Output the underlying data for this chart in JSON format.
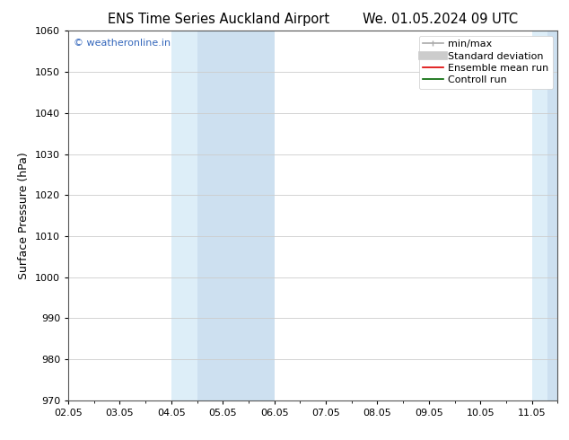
{
  "title": "ENS Time Series Auckland Airport",
  "title2": "We. 01.05.2024 09 UTC",
  "ylabel": "Surface Pressure (hPa)",
  "ylim": [
    970,
    1060
  ],
  "yticks": [
    970,
    980,
    990,
    1000,
    1010,
    1020,
    1030,
    1040,
    1050,
    1060
  ],
  "xlim": [
    0,
    9.5
  ],
  "xtick_labels": [
    "02.05",
    "03.05",
    "04.05",
    "05.05",
    "06.05",
    "07.05",
    "08.05",
    "09.05",
    "10.05",
    "11.05"
  ],
  "xtick_positions": [
    0,
    1,
    2,
    3,
    4,
    5,
    6,
    7,
    8,
    9
  ],
  "watermark": "© weatheronline.in",
  "watermark_color": "#3366bb",
  "shaded_bands": [
    {
      "x_start": 2.0,
      "x_end": 2.5,
      "color": "#ddeef8"
    },
    {
      "x_start": 2.5,
      "x_end": 4.0,
      "color": "#cde0f0"
    },
    {
      "x_start": 9.0,
      "x_end": 9.3,
      "color": "#ddeef8"
    },
    {
      "x_start": 9.3,
      "x_end": 9.5,
      "color": "#cde0f0"
    }
  ],
  "legend_items": [
    {
      "label": "min/max",
      "color": "#aaaaaa",
      "lw": 1.2
    },
    {
      "label": "Standard deviation",
      "color": "#cccccc",
      "lw": 7
    },
    {
      "label": "Ensemble mean run",
      "color": "#dd0000",
      "lw": 1.2
    },
    {
      "label": "Controll run",
      "color": "#006600",
      "lw": 1.2
    }
  ],
  "bg_color": "#ffffff",
  "plot_bg_color": "#ffffff",
  "grid_color": "#cccccc",
  "title_fontsize": 10.5,
  "label_fontsize": 9,
  "tick_fontsize": 8,
  "legend_fontsize": 8
}
